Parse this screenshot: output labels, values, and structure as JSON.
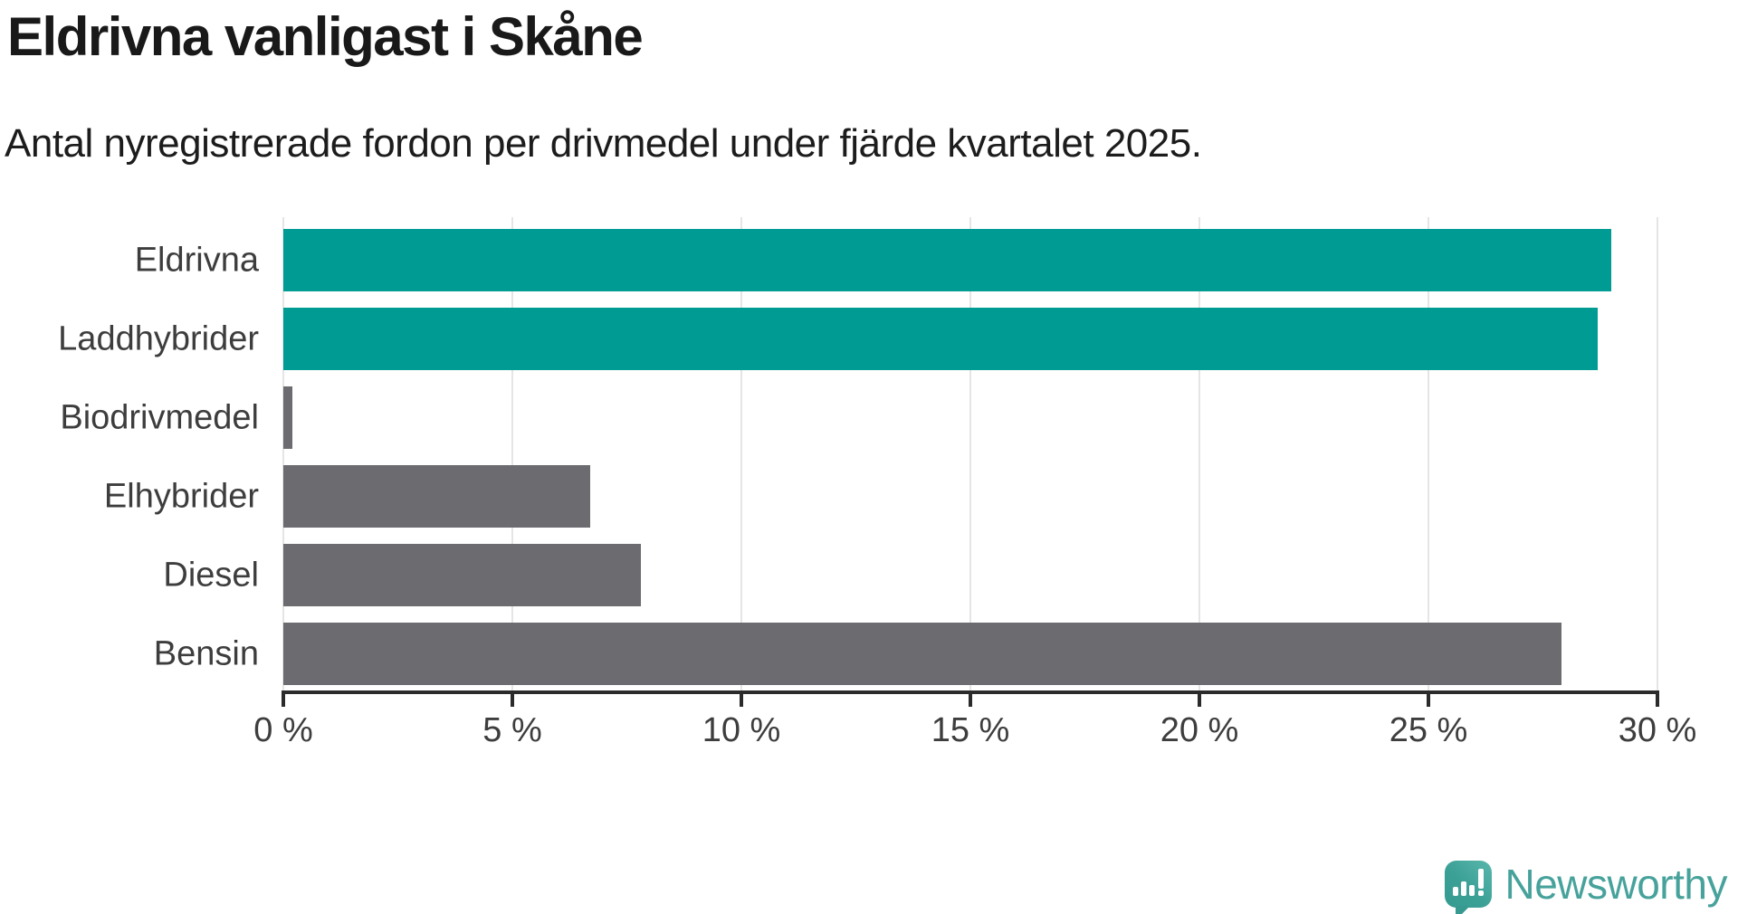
{
  "header": {
    "title": "Eldrivna vanligast i Skåne",
    "subtitle": "Antal nyregistrerade fordon per drivmedel under fjärde kvartalet 2025."
  },
  "chart_data": {
    "type": "bar",
    "orientation": "horizontal",
    "title": "Eldrivna vanligast i Skåne",
    "subtitle": "Antal nyregistrerade fordon per drivmedel under fjärde kvartalet 2025.",
    "categories": [
      "Eldrivna",
      "Laddhybrider",
      "Biodrivmedel",
      "Elhybrider",
      "Diesel",
      "Bensin"
    ],
    "values": [
      29.0,
      28.7,
      0.2,
      6.7,
      7.8,
      27.9
    ],
    "unit": "%",
    "xlabel": "",
    "ylabel": "",
    "xlim": [
      0,
      30
    ],
    "x_ticks": [
      0,
      5,
      10,
      15,
      20,
      25,
      30
    ],
    "x_tick_labels": [
      "0 %",
      "5 %",
      "10 %",
      "15 %",
      "20 %",
      "25 %",
      "30 %"
    ],
    "grid": "vertical-only",
    "legend": "none",
    "bar_colors": [
      "#009b93",
      "#009b93",
      "#6b6b70",
      "#6b6b70",
      "#6b6b70",
      "#6b6b70"
    ],
    "colors": {
      "accent_teal": "#009b93",
      "bar_gray": "#6b6b70",
      "gridline": "#e5e5e5",
      "axis": "#2b2b2b",
      "tick_label": "#3d3d3d",
      "text": "#191919"
    }
  },
  "branding": {
    "logo_text": "Newsworthy",
    "logo_icon": "newsworthy-speech-bubble-bar-chart-icon",
    "logo_icon_color": "#3ba096",
    "logo_text_color": "#47a29b"
  }
}
